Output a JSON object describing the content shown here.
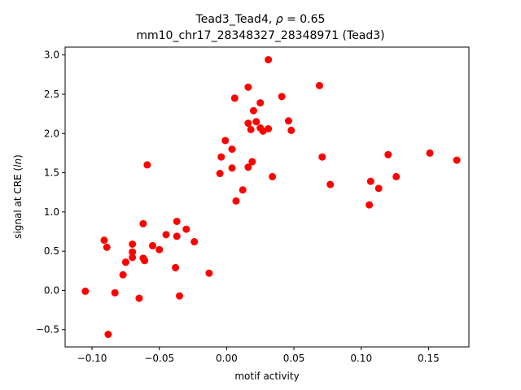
{
  "chart_data": {
    "type": "scatter",
    "title_line1": "Tead3_Tead4, ρ = 0.65",
    "title_line2": "mm10_chr17_28348327_28348971 (Tead3)",
    "xlabel": "motif activity",
    "ylabel": "signal at CRE (ln)",
    "xlim": [
      -0.12,
      0.18
    ],
    "ylim": [
      -0.72,
      3.1
    ],
    "xticks": [
      -0.1,
      -0.05,
      0.0,
      0.05,
      0.1,
      0.15
    ],
    "xtick_labels": [
      "−0.10",
      "−0.05",
      "0.00",
      "0.05",
      "0.10",
      "0.15"
    ],
    "yticks": [
      -0.5,
      0.0,
      0.5,
      1.0,
      1.5,
      2.0,
      2.5,
      3.0
    ],
    "ytick_labels": [
      "−0.5",
      "0.0",
      "0.5",
      "1.0",
      "1.5",
      "2.0",
      "2.5",
      "3.0"
    ],
    "grid": false,
    "marker_color": "#ff0000",
    "points": [
      {
        "x": -0.105,
        "y": -0.01
      },
      {
        "x": -0.091,
        "y": 0.64
      },
      {
        "x": -0.089,
        "y": 0.55
      },
      {
        "x": -0.088,
        "y": -0.56
      },
      {
        "x": -0.083,
        "y": -0.03
      },
      {
        "x": -0.077,
        "y": 0.2
      },
      {
        "x": -0.075,
        "y": 0.36
      },
      {
        "x": -0.07,
        "y": 0.59
      },
      {
        "x": -0.07,
        "y": 0.49
      },
      {
        "x": -0.07,
        "y": 0.42
      },
      {
        "x": -0.065,
        "y": -0.1
      },
      {
        "x": -0.062,
        "y": 0.85
      },
      {
        "x": -0.062,
        "y": 0.41
      },
      {
        "x": -0.061,
        "y": 0.38
      },
      {
        "x": -0.059,
        "y": 1.6
      },
      {
        "x": -0.055,
        "y": 0.57
      },
      {
        "x": -0.05,
        "y": 0.52
      },
      {
        "x": -0.045,
        "y": 0.71
      },
      {
        "x": -0.037,
        "y": 0.88
      },
      {
        "x": -0.037,
        "y": 0.69
      },
      {
        "x": -0.038,
        "y": 0.29
      },
      {
        "x": -0.035,
        "y": -0.07
      },
      {
        "x": -0.03,
        "y": 0.78
      },
      {
        "x": -0.024,
        "y": 0.62
      },
      {
        "x": -0.013,
        "y": 0.22
      },
      {
        "x": -0.005,
        "y": 1.49
      },
      {
        "x": -0.004,
        "y": 1.7
      },
      {
        "x": -0.001,
        "y": 1.91
      },
      {
        "x": 0.004,
        "y": 1.8
      },
      {
        "x": 0.004,
        "y": 1.56
      },
      {
        "x": 0.006,
        "y": 2.45
      },
      {
        "x": 0.007,
        "y": 1.14
      },
      {
        "x": 0.012,
        "y": 1.28
      },
      {
        "x": 0.016,
        "y": 2.59
      },
      {
        "x": 0.016,
        "y": 2.13
      },
      {
        "x": 0.016,
        "y": 1.57
      },
      {
        "x": 0.018,
        "y": 2.05
      },
      {
        "x": 0.019,
        "y": 1.64
      },
      {
        "x": 0.02,
        "y": 2.29
      },
      {
        "x": 0.022,
        "y": 2.15
      },
      {
        "x": 0.025,
        "y": 2.39
      },
      {
        "x": 0.025,
        "y": 2.07
      },
      {
        "x": 0.027,
        "y": 2.03
      },
      {
        "x": 0.031,
        "y": 2.94
      },
      {
        "x": 0.031,
        "y": 2.06
      },
      {
        "x": 0.034,
        "y": 1.45
      },
      {
        "x": 0.041,
        "y": 2.47
      },
      {
        "x": 0.046,
        "y": 2.16
      },
      {
        "x": 0.048,
        "y": 2.04
      },
      {
        "x": 0.069,
        "y": 2.61
      },
      {
        "x": 0.071,
        "y": 1.7
      },
      {
        "x": 0.077,
        "y": 1.35
      },
      {
        "x": 0.106,
        "y": 1.09
      },
      {
        "x": 0.107,
        "y": 1.39
      },
      {
        "x": 0.113,
        "y": 1.3
      },
      {
        "x": 0.12,
        "y": 1.73
      },
      {
        "x": 0.126,
        "y": 1.45
      },
      {
        "x": 0.151,
        "y": 1.75
      },
      {
        "x": 0.171,
        "y": 1.66
      }
    ]
  }
}
